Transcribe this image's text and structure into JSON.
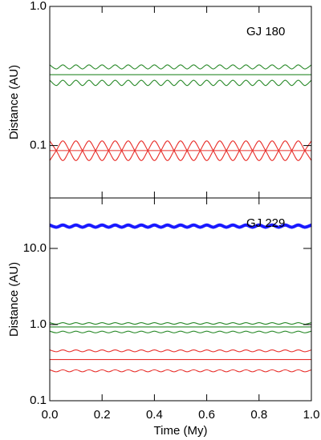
{
  "chart_data": [
    {
      "type": "line",
      "annotation": "GJ 180",
      "ylabel": "Distance (AU)",
      "log_y": true,
      "xlim": [
        0,
        1
      ],
      "ylim": [
        0.042,
        1
      ],
      "xticks": [
        0,
        0.2,
        0.4,
        0.6,
        0.8,
        1
      ],
      "yticks": [
        0.1,
        {
          "value": 1,
          "label": "1.0"
        }
      ],
      "x": [
        0,
        0.025,
        0.05,
        0.075,
        0.1,
        0.125,
        0.15,
        0.175,
        0.2,
        0.225,
        0.25,
        0.275,
        0.3,
        0.325,
        0.35,
        0.375,
        0.4,
        0.425,
        0.45,
        0.475,
        0.5,
        0.525,
        0.55,
        0.575,
        0.6,
        0.625,
        0.65,
        0.675,
        0.7,
        0.725,
        0.75,
        0.775,
        0.8,
        0.825,
        0.85,
        0.875,
        0.9,
        0.925,
        0.95,
        0.975,
        1
      ],
      "series": [
        {
          "color": "#2a8a2a",
          "values": [
            0.38,
            0.355,
            0.38,
            0.355,
            0.38,
            0.355,
            0.38,
            0.355,
            0.38,
            0.355,
            0.38,
            0.355,
            0.38,
            0.355,
            0.38,
            0.355,
            0.38,
            0.355,
            0.38,
            0.355,
            0.38,
            0.355,
            0.38,
            0.355,
            0.38,
            0.355,
            0.38,
            0.355,
            0.38,
            0.355,
            0.38,
            0.355,
            0.38,
            0.355,
            0.38,
            0.355,
            0.38,
            0.355,
            0.38,
            0.355,
            0.38
          ]
        },
        {
          "color": "#2a8a2a",
          "x": [
            0,
            1
          ],
          "values": [
            0.323,
            0.323
          ]
        },
        {
          "color": "#2a8a2a",
          "values": [
            0.295,
            0.27,
            0.295,
            0.27,
            0.295,
            0.27,
            0.295,
            0.27,
            0.295,
            0.27,
            0.295,
            0.27,
            0.295,
            0.27,
            0.295,
            0.27,
            0.295,
            0.27,
            0.295,
            0.27,
            0.295,
            0.27,
            0.295,
            0.27,
            0.295,
            0.27,
            0.295,
            0.27,
            0.295,
            0.27,
            0.295,
            0.27,
            0.295,
            0.27,
            0.295,
            0.27,
            0.295,
            0.27,
            0.295,
            0.27,
            0.295
          ]
        },
        {
          "color": "#e8302c",
          "values": [
            0.108,
            0.092,
            0.078,
            0.092,
            0.108,
            0.092,
            0.078,
            0.092,
            0.108,
            0.092,
            0.078,
            0.092,
            0.108,
            0.092,
            0.078,
            0.092,
            0.108,
            0.092,
            0.078,
            0.092,
            0.108,
            0.092,
            0.078,
            0.092,
            0.108,
            0.092,
            0.078,
            0.092,
            0.108,
            0.092,
            0.078,
            0.092,
            0.108,
            0.092,
            0.078,
            0.092,
            0.108,
            0.092,
            0.078,
            0.092,
            0.108
          ]
        },
        {
          "color": "#e8302c",
          "values": [
            0.078,
            0.092,
            0.108,
            0.092,
            0.078,
            0.092,
            0.108,
            0.092,
            0.078,
            0.092,
            0.108,
            0.092,
            0.078,
            0.092,
            0.108,
            0.092,
            0.078,
            0.092,
            0.108,
            0.092,
            0.078,
            0.092,
            0.108,
            0.092,
            0.078,
            0.092,
            0.108,
            0.092,
            0.078,
            0.092,
            0.108,
            0.092,
            0.078,
            0.092,
            0.108,
            0.092,
            0.078,
            0.092,
            0.108,
            0.092,
            0.078
          ]
        },
        {
          "color": "#e8302c",
          "x": [
            0,
            1
          ],
          "values": [
            0.092,
            0.092
          ]
        }
      ]
    },
    {
      "type": "line",
      "annotation": "GJ 229",
      "ylabel": "Distance (AU)",
      "xlabel": "Time (My)",
      "log_y": true,
      "xlim": [
        0,
        1
      ],
      "ylim": [
        0.1,
        46
      ],
      "xticks": [
        {
          "value": 0,
          "label": "0.0"
        },
        0.2,
        0.4,
        0.6,
        0.8,
        {
          "value": 1,
          "label": "1.0"
        }
      ],
      "yticks": [
        0.1,
        {
          "value": 1,
          "label": "1.0"
        },
        {
          "value": 10,
          "label": "10.0"
        }
      ],
      "x": [
        0,
        0.025,
        0.05,
        0.075,
        0.1,
        0.125,
        0.15,
        0.175,
        0.2,
        0.225,
        0.25,
        0.275,
        0.3,
        0.325,
        0.35,
        0.375,
        0.4,
        0.425,
        0.45,
        0.475,
        0.5,
        0.525,
        0.55,
        0.575,
        0.6,
        0.625,
        0.65,
        0.675,
        0.7,
        0.725,
        0.75,
        0.775,
        0.8,
        0.825,
        0.85,
        0.875,
        0.9,
        0.925,
        0.95,
        0.975,
        1
      ],
      "series": [
        {
          "color": "#1a1aff",
          "width": 4,
          "values": [
            20.3,
            19,
            20.3,
            19,
            20.3,
            19,
            20.3,
            19,
            20.3,
            19,
            20.3,
            19,
            20.3,
            19,
            20.3,
            19,
            20.3,
            19,
            20.3,
            19,
            20.3,
            19,
            20.3,
            19,
            20.3,
            19,
            20.3,
            19,
            20.3,
            19,
            20.3,
            19,
            20.3,
            19,
            20.3,
            19,
            20.3,
            19,
            20.3,
            19,
            20.3
          ]
        },
        {
          "color": "#2a8a2a",
          "values": [
            1.06,
            1.01,
            1.06,
            1.01,
            1.06,
            1.01,
            1.06,
            1.01,
            1.06,
            1.01,
            1.06,
            1.01,
            1.06,
            1.01,
            1.06,
            1.01,
            1.06,
            1.01,
            1.06,
            1.01,
            1.06,
            1.01,
            1.06,
            1.01,
            1.06,
            1.01,
            1.06,
            1.01,
            1.06,
            1.01,
            1.06,
            1.01,
            1.06,
            1.01,
            1.06,
            1.01,
            1.06,
            1.01,
            1.06,
            1.01,
            1.06
          ]
        },
        {
          "color": "#2a8a2a",
          "x": [
            0,
            1
          ],
          "values": [
            0.93,
            0.93
          ]
        },
        {
          "color": "#2a8a2a",
          "values": [
            0.82,
            0.78,
            0.82,
            0.78,
            0.82,
            0.78,
            0.82,
            0.78,
            0.82,
            0.78,
            0.82,
            0.78,
            0.82,
            0.78,
            0.82,
            0.78,
            0.82,
            0.78,
            0.82,
            0.78,
            0.82,
            0.78,
            0.82,
            0.78,
            0.82,
            0.78,
            0.82,
            0.78,
            0.82,
            0.78,
            0.82,
            0.78,
            0.82,
            0.78,
            0.82,
            0.78,
            0.82,
            0.78,
            0.82,
            0.78,
            0.82
          ]
        },
        {
          "color": "#e8302c",
          "values": [
            0.465,
            0.44,
            0.465,
            0.44,
            0.465,
            0.44,
            0.465,
            0.44,
            0.465,
            0.44,
            0.465,
            0.44,
            0.465,
            0.44,
            0.465,
            0.44,
            0.465,
            0.44,
            0.465,
            0.44,
            0.465,
            0.44,
            0.465,
            0.44,
            0.465,
            0.44,
            0.465,
            0.44,
            0.465,
            0.44,
            0.465,
            0.44,
            0.465,
            0.44,
            0.465,
            0.44,
            0.465,
            0.44,
            0.465,
            0.44,
            0.465
          ]
        },
        {
          "color": "#e8302c",
          "x": [
            0,
            1
          ],
          "values": [
            0.348,
            0.348
          ]
        },
        {
          "color": "#e8302c",
          "values": [
            0.255,
            0.24,
            0.255,
            0.24,
            0.255,
            0.24,
            0.255,
            0.24,
            0.255,
            0.24,
            0.255,
            0.24,
            0.255,
            0.24,
            0.255,
            0.24,
            0.255,
            0.24,
            0.255,
            0.24,
            0.255,
            0.24,
            0.255,
            0.24,
            0.255,
            0.24,
            0.255,
            0.24,
            0.255,
            0.24,
            0.255,
            0.24,
            0.255,
            0.24,
            0.255,
            0.24,
            0.255,
            0.24,
            0.255,
            0.24,
            0.255
          ]
        }
      ]
    }
  ]
}
